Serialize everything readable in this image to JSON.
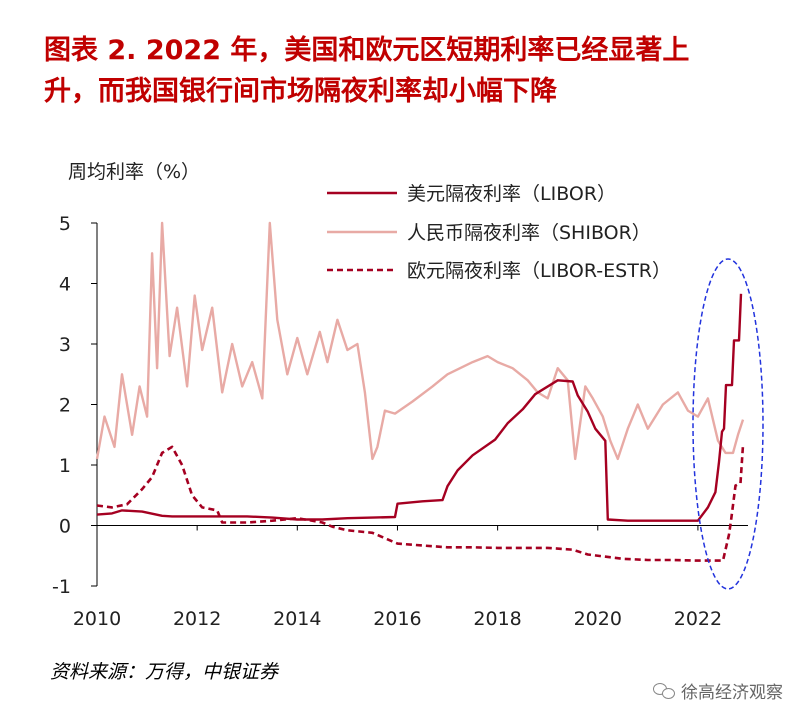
{
  "title": {
    "line1": "图表 2.  2022 年，美国和欧元区短期利率已经显著上",
    "line2": "升，而我国银行间市场隔夜利率却小幅下降"
  },
  "source_note": "资料来源：万得，中银证券",
  "watermark": {
    "text": "徐高经济观察",
    "icon": "wechat-icon"
  },
  "chart_data": {
    "type": "line",
    "ylabel": "周均利率（%）",
    "ylim": [
      -1,
      5
    ],
    "xlim": [
      2010,
      2023
    ],
    "yticks": [
      "5",
      "4",
      "3",
      "2",
      "1",
      "0",
      "-1"
    ],
    "xticks": [
      "2010",
      "2012",
      "2014",
      "2016",
      "2018",
      "2020",
      "2022"
    ],
    "legend_position": "top-right",
    "highlight": {
      "shape": "dashed-ellipse",
      "color": "#2233dd",
      "region": "2022"
    },
    "series": [
      {
        "name": "美元隔夜利率（LIBOR）",
        "color": "#a50021",
        "style": "solid",
        "points": [
          [
            2010.0,
            0.18
          ],
          [
            2010.3,
            0.2
          ],
          [
            2010.5,
            0.25
          ],
          [
            2010.9,
            0.23
          ],
          [
            2011.3,
            0.16
          ],
          [
            2011.5,
            0.15
          ],
          [
            2012.0,
            0.15
          ],
          [
            2012.5,
            0.15
          ],
          [
            2013.0,
            0.15
          ],
          [
            2013.5,
            0.13
          ],
          [
            2014.0,
            0.1
          ],
          [
            2014.5,
            0.1
          ],
          [
            2015.0,
            0.12
          ],
          [
            2015.5,
            0.13
          ],
          [
            2015.95,
            0.14
          ],
          [
            2016.0,
            0.36
          ],
          [
            2016.5,
            0.4
          ],
          [
            2016.9,
            0.42
          ],
          [
            2017.0,
            0.65
          ],
          [
            2017.2,
            0.91
          ],
          [
            2017.5,
            1.16
          ],
          [
            2017.95,
            1.42
          ],
          [
            2018.2,
            1.69
          ],
          [
            2018.5,
            1.92
          ],
          [
            2018.75,
            2.17
          ],
          [
            2019.2,
            2.4
          ],
          [
            2019.5,
            2.38
          ],
          [
            2019.6,
            2.15
          ],
          [
            2019.8,
            1.88
          ],
          [
            2019.95,
            1.6
          ],
          [
            2020.15,
            1.4
          ],
          [
            2020.2,
            0.1
          ],
          [
            2020.6,
            0.08
          ],
          [
            2021.0,
            0.08
          ],
          [
            2021.5,
            0.08
          ],
          [
            2022.0,
            0.08
          ],
          [
            2022.2,
            0.3
          ],
          [
            2022.35,
            0.55
          ],
          [
            2022.42,
            1.05
          ],
          [
            2022.48,
            1.55
          ],
          [
            2022.52,
            1.6
          ],
          [
            2022.56,
            2.32
          ],
          [
            2022.68,
            2.32
          ],
          [
            2022.72,
            3.06
          ],
          [
            2022.82,
            3.06
          ],
          [
            2022.86,
            3.83
          ]
        ]
      },
      {
        "name": "人民币隔夜利率（SHIBOR）",
        "color": "#e8aaa5",
        "style": "solid",
        "points": [
          [
            2010.0,
            1.1
          ],
          [
            2010.15,
            1.8
          ],
          [
            2010.35,
            1.3
          ],
          [
            2010.5,
            2.5
          ],
          [
            2010.7,
            1.5
          ],
          [
            2010.85,
            2.3
          ],
          [
            2011.0,
            1.8
          ],
          [
            2011.1,
            4.5
          ],
          [
            2011.2,
            2.6
          ],
          [
            2011.3,
            5.0
          ],
          [
            2011.45,
            2.8
          ],
          [
            2011.6,
            3.6
          ],
          [
            2011.8,
            2.3
          ],
          [
            2011.95,
            3.8
          ],
          [
            2012.1,
            2.9
          ],
          [
            2012.3,
            3.6
          ],
          [
            2012.5,
            2.2
          ],
          [
            2012.7,
            3.0
          ],
          [
            2012.9,
            2.3
          ],
          [
            2013.1,
            2.7
          ],
          [
            2013.3,
            2.1
          ],
          [
            2013.45,
            5.0
          ],
          [
            2013.6,
            3.4
          ],
          [
            2013.8,
            2.5
          ],
          [
            2014.0,
            3.1
          ],
          [
            2014.2,
            2.5
          ],
          [
            2014.45,
            3.2
          ],
          [
            2014.6,
            2.7
          ],
          [
            2014.8,
            3.4
          ],
          [
            2015.0,
            2.9
          ],
          [
            2015.2,
            3.0
          ],
          [
            2015.35,
            2.2
          ],
          [
            2015.5,
            1.1
          ],
          [
            2015.6,
            1.3
          ],
          [
            2015.75,
            1.9
          ],
          [
            2015.95,
            1.85
          ],
          [
            2016.3,
            2.05
          ],
          [
            2016.7,
            2.3
          ],
          [
            2017.0,
            2.5
          ],
          [
            2017.5,
            2.7
          ],
          [
            2017.8,
            2.8
          ],
          [
            2018.0,
            2.7
          ],
          [
            2018.3,
            2.6
          ],
          [
            2018.6,
            2.4
          ],
          [
            2018.8,
            2.2
          ],
          [
            2019.0,
            2.1
          ],
          [
            2019.2,
            2.6
          ],
          [
            2019.4,
            2.4
          ],
          [
            2019.55,
            1.1
          ],
          [
            2019.75,
            2.3
          ],
          [
            2019.9,
            2.1
          ],
          [
            2020.1,
            1.8
          ],
          [
            2020.25,
            1.4
          ],
          [
            2020.4,
            1.1
          ],
          [
            2020.6,
            1.6
          ],
          [
            2020.8,
            2.0
          ],
          [
            2021.0,
            1.6
          ],
          [
            2021.3,
            2.0
          ],
          [
            2021.6,
            2.2
          ],
          [
            2021.8,
            1.9
          ],
          [
            2022.0,
            1.8
          ],
          [
            2022.2,
            2.1
          ],
          [
            2022.4,
            1.4
          ],
          [
            2022.55,
            1.2
          ],
          [
            2022.7,
            1.2
          ],
          [
            2022.8,
            1.5
          ],
          [
            2022.9,
            1.75
          ]
        ]
      },
      {
        "name": "欧元隔夜利率（LIBOR-ESTR）",
        "color": "#a50021",
        "style": "dashed",
        "points": [
          [
            2010.0,
            0.33
          ],
          [
            2010.3,
            0.3
          ],
          [
            2010.6,
            0.35
          ],
          [
            2010.9,
            0.6
          ],
          [
            2011.1,
            0.8
          ],
          [
            2011.3,
            1.2
          ],
          [
            2011.5,
            1.3
          ],
          [
            2011.7,
            1.0
          ],
          [
            2011.9,
            0.5
          ],
          [
            2012.1,
            0.3
          ],
          [
            2012.4,
            0.25
          ],
          [
            2012.5,
            0.05
          ],
          [
            2013.0,
            0.05
          ],
          [
            2013.5,
            0.08
          ],
          [
            2014.0,
            0.12
          ],
          [
            2014.3,
            0.08
          ],
          [
            2014.5,
            0.05
          ],
          [
            2014.7,
            -0.02
          ],
          [
            2015.0,
            -0.08
          ],
          [
            2015.5,
            -0.12
          ],
          [
            2016.0,
            -0.3
          ],
          [
            2016.5,
            -0.33
          ],
          [
            2017.0,
            -0.36
          ],
          [
            2017.5,
            -0.36
          ],
          [
            2018.0,
            -0.37
          ],
          [
            2018.5,
            -0.37
          ],
          [
            2019.0,
            -0.37
          ],
          [
            2019.5,
            -0.4
          ],
          [
            2019.8,
            -0.48
          ],
          [
            2020.5,
            -0.55
          ],
          [
            2021.0,
            -0.57
          ],
          [
            2021.5,
            -0.57
          ],
          [
            2022.0,
            -0.58
          ],
          [
            2022.5,
            -0.58
          ],
          [
            2022.62,
            -0.15
          ],
          [
            2022.66,
            0.08
          ],
          [
            2022.75,
            0.66
          ],
          [
            2022.85,
            0.7
          ],
          [
            2022.9,
            1.33
          ]
        ]
      }
    ]
  }
}
